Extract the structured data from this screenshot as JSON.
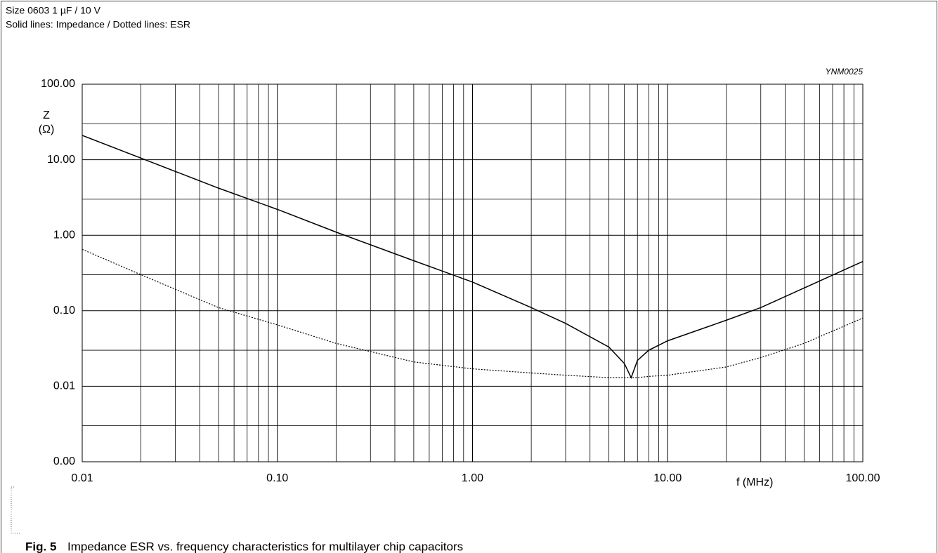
{
  "chart_data": {
    "type": "line",
    "subtitle": [
      "Size 0603 1 µF / 10 V",
      "Solid lines: Impedance / Dotted lines: ESR"
    ],
    "code": "YNM0025",
    "y_label": [
      "Z",
      "(Ω)"
    ],
    "x_label": "f (MHz)",
    "caption_label": "Fig. 5",
    "caption": "Impedance ESR vs. frequency characteristics for multilayer chip capacitors",
    "x_log": true,
    "y_log": true,
    "grid": true,
    "xlim": [
      0.01,
      100
    ],
    "ylim": [
      0.001,
      100
    ],
    "xticks": [
      {
        "value": 0.01,
        "label": "0.01"
      },
      {
        "value": 0.1,
        "label": "0.10"
      },
      {
        "value": 1,
        "label": "1.00"
      },
      {
        "value": 10,
        "label": "10.00"
      },
      {
        "value": 100,
        "label": "100.00"
      }
    ],
    "yticks": [
      {
        "value": 0.001,
        "label": "0.00"
      },
      {
        "value": 0.01,
        "label": "0.01"
      },
      {
        "value": 0.1,
        "label": "0.10"
      },
      {
        "value": 1,
        "label": "1.00"
      },
      {
        "value": 10,
        "label": "10.00"
      },
      {
        "value": 100,
        "label": "100.00"
      }
    ],
    "x_minor_ticks": [
      0.02,
      0.03,
      0.04,
      0.05,
      0.06,
      0.07,
      0.08,
      0.09,
      0.2,
      0.3,
      0.4,
      0.5,
      0.6,
      0.7,
      0.8,
      0.9,
      2,
      3,
      4,
      5,
      6,
      7,
      8,
      9,
      20,
      30,
      40,
      50,
      60,
      70,
      80,
      90
    ],
    "y_minor_ticks": [
      0.003,
      0.03,
      0.3,
      3,
      30
    ],
    "x": [
      0.01,
      0.02,
      0.05,
      0.1,
      0.2,
      0.5,
      1,
      2,
      3,
      5,
      6,
      6.5,
      7,
      8,
      10,
      20,
      30,
      50,
      100
    ],
    "series": [
      {
        "color": "#000000",
        "dash": "solid",
        "values": [
          21,
          10.5,
          4.2,
          2.2,
          1.1,
          0.46,
          0.24,
          0.11,
          0.068,
          0.033,
          0.02,
          0.013,
          0.022,
          0.03,
          0.04,
          0.075,
          0.11,
          0.2,
          0.45
        ]
      },
      {
        "color": "#000000",
        "dash": "dotted",
        "values": [
          0.65,
          0.3,
          0.11,
          0.065,
          0.037,
          0.021,
          0.017,
          0.015,
          0.014,
          0.013,
          0.013,
          0.013,
          0.013,
          0.0135,
          0.014,
          0.018,
          0.024,
          0.037,
          0.08
        ]
      }
    ]
  }
}
